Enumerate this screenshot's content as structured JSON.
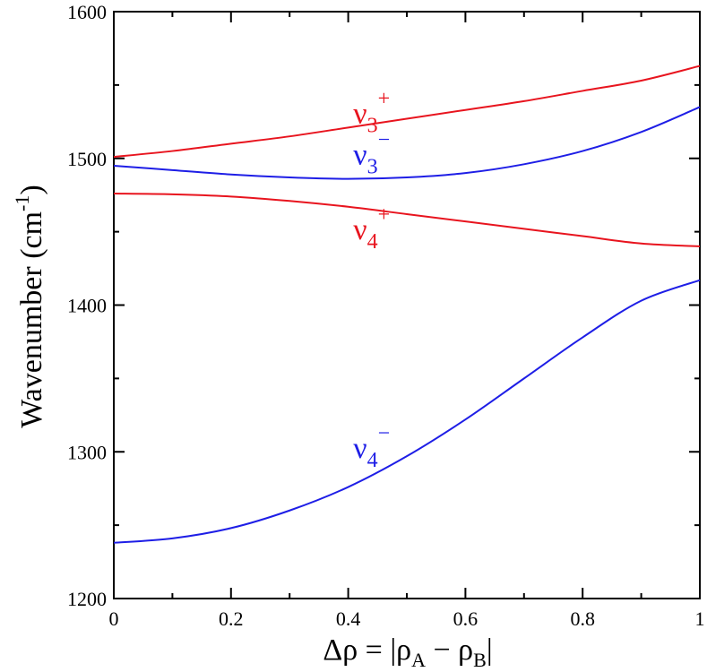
{
  "chart_data": {
    "type": "line",
    "title": "",
    "xlabel": {
      "main": "Δρ = |ρ",
      "sub_a": "A",
      "minus": " − ρ",
      "sub_b": "B",
      "end": "|"
    },
    "ylabel": {
      "main": "Wavenumber (cm",
      "sup": "-1",
      "end": ")"
    },
    "xlim": [
      0,
      1
    ],
    "ylim": [
      1200,
      1600
    ],
    "x_ticks": [
      0,
      0.2,
      0.4,
      0.6,
      0.8,
      1
    ],
    "x_tick_labels": [
      "0",
      "0.2",
      "0.4",
      "0.6",
      "0.8",
      "1"
    ],
    "y_ticks": [
      1200,
      1300,
      1400,
      1500,
      1600
    ],
    "y_tick_labels": [
      "1200",
      "1300",
      "1400",
      "1500",
      "1600"
    ],
    "series": [
      {
        "id": "nu3-plus",
        "color": "#e8141e",
        "label_main": "ν",
        "label_sub": "3",
        "label_sup": "+",
        "label_anchor": [
          0.44,
          1524
        ],
        "x": [
          0,
          0.1,
          0.2,
          0.3,
          0.4,
          0.5,
          0.6,
          0.7,
          0.8,
          0.9,
          1.0
        ],
        "y": [
          1501,
          1505,
          1510,
          1515,
          1521,
          1527,
          1533,
          1539,
          1546,
          1553,
          1563
        ]
      },
      {
        "id": "nu3-minus",
        "color": "#1e1ee6",
        "label_main": "ν",
        "label_sub": "3",
        "label_sup": "−",
        "label_anchor": [
          0.44,
          1496
        ],
        "x": [
          0,
          0.1,
          0.2,
          0.3,
          0.4,
          0.5,
          0.6,
          0.7,
          0.8,
          0.9,
          1.0
        ],
        "y": [
          1495,
          1492,
          1489,
          1487,
          1486,
          1487,
          1490,
          1496,
          1505,
          1518,
          1535
        ]
      },
      {
        "id": "nu4-plus",
        "color": "#e8141e",
        "label_main": "ν",
        "label_sub": "4",
        "label_sup": "+",
        "label_anchor": [
          0.44,
          1445
        ],
        "x": [
          0,
          0.1,
          0.2,
          0.3,
          0.4,
          0.5,
          0.6,
          0.7,
          0.8,
          0.9,
          1.0
        ],
        "y": [
          1476,
          1475.5,
          1474,
          1471,
          1467,
          1462,
          1457,
          1452,
          1447,
          1442,
          1440
        ]
      },
      {
        "id": "nu4-minus",
        "color": "#1e1ee6",
        "label_main": "ν",
        "label_sub": "4",
        "label_sup": "−",
        "label_anchor": [
          0.44,
          1296
        ],
        "x": [
          0,
          0.1,
          0.2,
          0.3,
          0.4,
          0.5,
          0.6,
          0.7,
          0.8,
          0.9,
          1.0
        ],
        "y": [
          1238,
          1241,
          1248,
          1260,
          1276,
          1297,
          1322,
          1350,
          1378,
          1403,
          1417
        ]
      }
    ],
    "grid": false,
    "legend": "none"
  }
}
